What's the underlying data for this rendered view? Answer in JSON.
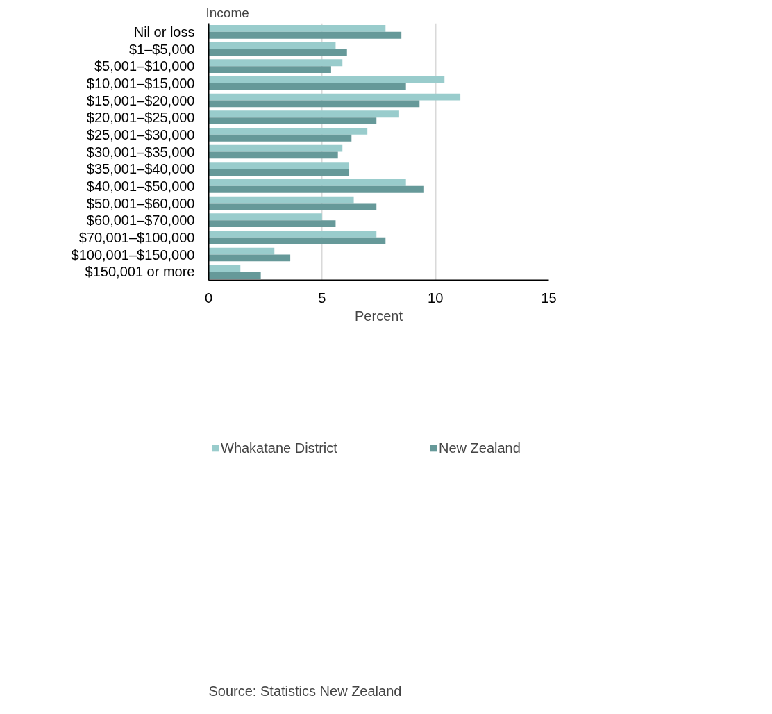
{
  "chart_data": {
    "type": "bar",
    "orientation": "horizontal",
    "ylabel": "Income",
    "xlabel": "Percent",
    "categories": [
      "Nil or loss",
      "$1–$5,000",
      "$5,001–$10,000",
      "$10,001–$15,000",
      "$15,001–$20,000",
      "$20,001–$25,000",
      "$25,001–$30,000",
      "$30,001–$35,000",
      "$35,001–$40,000",
      "$40,001–$50,000",
      "$50,001–$60,000",
      "$60,001–$70,000",
      "$70,001–$100,000",
      "$100,001–$150,000",
      "$150,001 or more"
    ],
    "series": [
      {
        "name": "Whakatane District",
        "color": "#99cccc",
        "values": [
          7.8,
          5.6,
          5.9,
          10.4,
          11.1,
          8.4,
          7.0,
          5.9,
          6.2,
          8.7,
          6.4,
          5.0,
          7.4,
          2.9,
          1.4
        ]
      },
      {
        "name": "New Zealand",
        "color": "#669999",
        "values": [
          8.5,
          6.1,
          5.4,
          8.7,
          9.3,
          7.4,
          6.3,
          5.7,
          6.2,
          9.5,
          7.4,
          5.6,
          7.8,
          3.6,
          2.3
        ]
      }
    ],
    "xlim": [
      0,
      15
    ],
    "xticks": [
      0,
      5,
      10,
      15
    ],
    "grid": "x",
    "legend": "bottom",
    "annotations": [
      "Source: Statistics New Zealand"
    ]
  }
}
